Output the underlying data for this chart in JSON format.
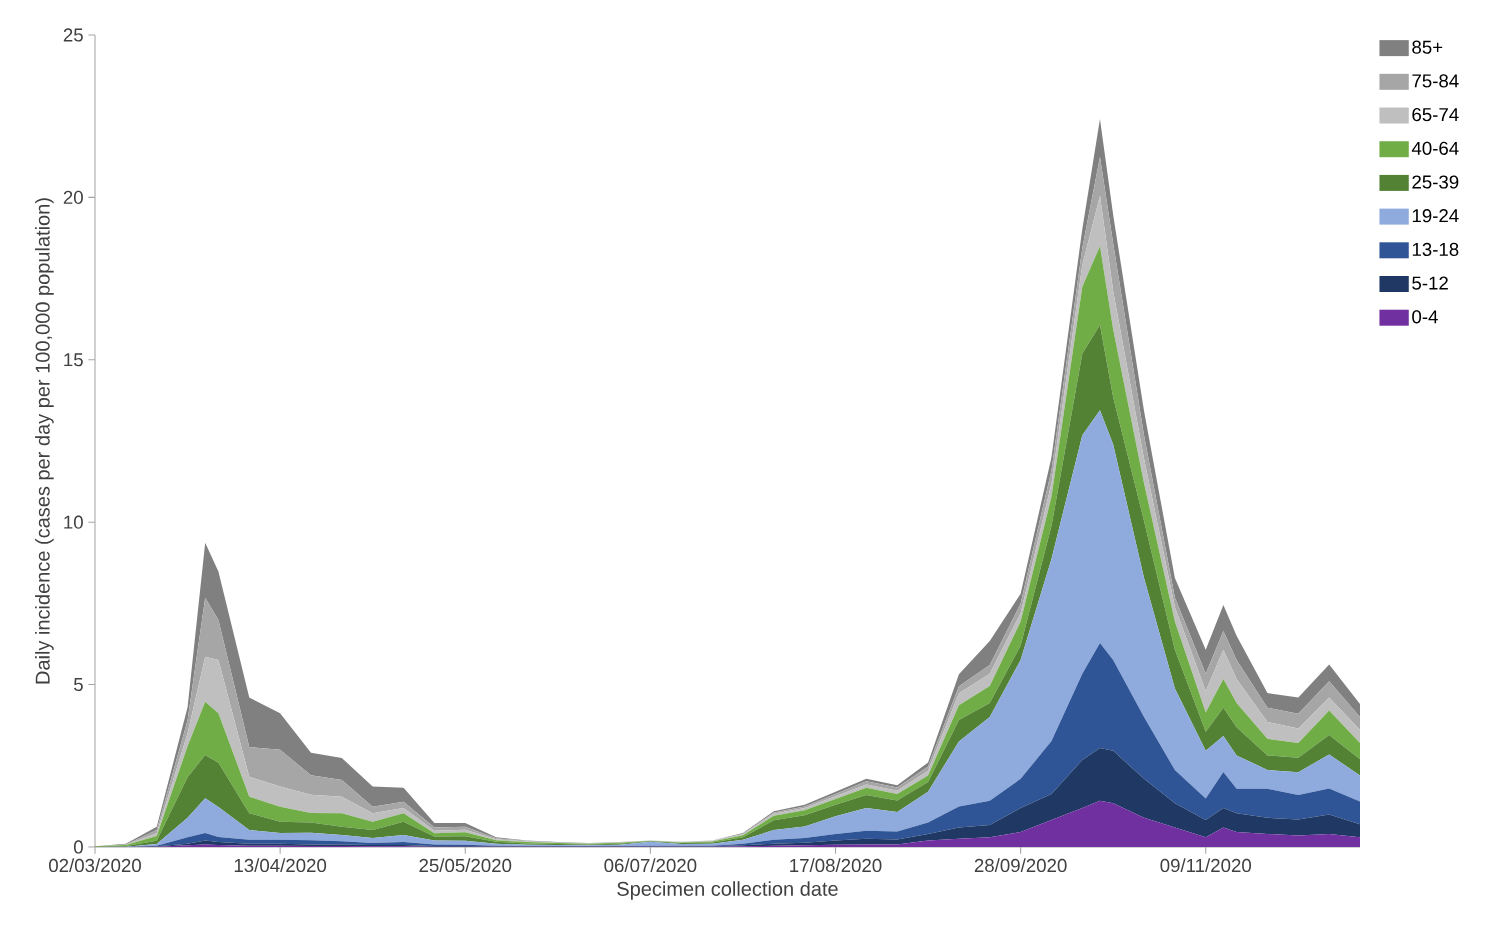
{
  "chart_data": {
    "type": "area",
    "stacked": true,
    "xlabel": "Specimen collection date",
    "ylabel": "Daily incidence (cases per day per 100,000 population)",
    "x": [
      "2020-03-02",
      "2020-03-09",
      "2020-03-16",
      "2020-03-23",
      "2020-03-27",
      "2020-03-30",
      "2020-04-06",
      "2020-04-13",
      "2020-04-20",
      "2020-04-27",
      "2020-05-04",
      "2020-05-11",
      "2020-05-18",
      "2020-05-25",
      "2020-06-01",
      "2020-06-08",
      "2020-06-15",
      "2020-06-22",
      "2020-06-29",
      "2020-07-06",
      "2020-07-13",
      "2020-07-20",
      "2020-07-27",
      "2020-08-03",
      "2020-08-10",
      "2020-08-17",
      "2020-08-24",
      "2020-08-31",
      "2020-09-07",
      "2020-09-14",
      "2020-09-21",
      "2020-09-28",
      "2020-10-05",
      "2020-10-12",
      "2020-10-16",
      "2020-10-19",
      "2020-10-26",
      "2020-11-02",
      "2020-11-09",
      "2020-11-13",
      "2020-11-16",
      "2020-11-23",
      "2020-11-30",
      "2020-12-07",
      "2020-12-14"
    ],
    "series": [
      {
        "name": "0-4",
        "color": "#7030a0",
        "values": [
          0,
          0,
          0.01,
          0.05,
          0.08,
          0.06,
          0.04,
          0.04,
          0.03,
          0.03,
          0.02,
          0.02,
          0.01,
          0.01,
          0.01,
          0.01,
          0.01,
          0.01,
          0.01,
          0.01,
          0.01,
          0.01,
          0.02,
          0.04,
          0.05,
          0.07,
          0.08,
          0.08,
          0.2,
          0.25,
          0.3,
          0.46,
          0.83,
          1.2,
          1.42,
          1.35,
          0.9,
          0.6,
          0.3,
          0.6,
          0.46,
          0.4,
          0.35,
          0.4,
          0.3
        ]
      },
      {
        "name": "5-12",
        "color": "#1f3864",
        "values": [
          0,
          0,
          0.01,
          0.05,
          0.12,
          0.09,
          0.06,
          0.06,
          0.05,
          0.05,
          0.04,
          0.04,
          0.02,
          0.02,
          0.01,
          0.01,
          0.01,
          0.01,
          0.01,
          0.01,
          0.01,
          0.01,
          0.03,
          0.06,
          0.08,
          0.13,
          0.17,
          0.15,
          0.2,
          0.35,
          0.38,
          0.74,
          0.8,
          1.48,
          1.63,
          1.61,
          1.2,
          0.75,
          0.53,
          0.6,
          0.58,
          0.5,
          0.5,
          0.6,
          0.4
        ]
      },
      {
        "name": "13-18",
        "color": "#2f5597",
        "values": [
          0,
          0,
          0.02,
          0.2,
          0.23,
          0.16,
          0.12,
          0.12,
          0.13,
          0.1,
          0.06,
          0.09,
          0.05,
          0.04,
          0.02,
          0.01,
          0.01,
          0.01,
          0.01,
          0.02,
          0.02,
          0.02,
          0.05,
          0.12,
          0.15,
          0.2,
          0.25,
          0.25,
          0.35,
          0.65,
          0.74,
          0.9,
          1.63,
          2.65,
          3.23,
          2.8,
          1.9,
          1.02,
          0.66,
          1.11,
          0.75,
          0.89,
          0.75,
          0.8,
          0.7
        ]
      },
      {
        "name": "19-24",
        "color": "#8faadc",
        "values": [
          0,
          0.01,
          0.05,
          0.6,
          1.07,
          0.92,
          0.3,
          0.21,
          0.23,
          0.19,
          0.16,
          0.22,
          0.12,
          0.12,
          0.06,
          0.04,
          0.03,
          0.02,
          0.04,
          0.12,
          0.05,
          0.06,
          0.12,
          0.3,
          0.35,
          0.55,
          0.7,
          0.6,
          0.95,
          2.0,
          2.58,
          3.66,
          5.61,
          7.35,
          7.17,
          6.63,
          4.28,
          2.51,
          1.47,
          1.11,
          1.03,
          0.58,
          0.7,
          1.05,
          0.8
        ]
      },
      {
        "name": "25-39",
        "color": "#548235",
        "values": [
          0.01,
          0.02,
          0.1,
          1.25,
          1.33,
          1.36,
          0.52,
          0.35,
          0.31,
          0.25,
          0.24,
          0.41,
          0.12,
          0.14,
          0.06,
          0.04,
          0.03,
          0.03,
          0.03,
          0.02,
          0.03,
          0.04,
          0.08,
          0.3,
          0.35,
          0.35,
          0.4,
          0.35,
          0.3,
          0.66,
          0.43,
          0.44,
          1.01,
          2.51,
          2.62,
          1.46,
          1.76,
          1.19,
          0.59,
          0.87,
          0.87,
          0.45,
          0.45,
          0.6,
          0.5
        ]
      },
      {
        "name": "40-64",
        "color": "#70ad47",
        "values": [
          0.01,
          0.03,
          0.15,
          0.95,
          1.64,
          1.53,
          0.51,
          0.46,
          0.3,
          0.42,
          0.26,
          0.26,
          0.1,
          0.12,
          0.05,
          0.04,
          0.03,
          0.02,
          0.03,
          0.01,
          0.02,
          0.03,
          0.06,
          0.14,
          0.15,
          0.18,
          0.22,
          0.2,
          0.2,
          0.45,
          0.53,
          0.74,
          0.9,
          2.06,
          2.43,
          2.08,
          1.16,
          0.87,
          0.59,
          0.88,
          0.74,
          0.51,
          0.45,
          0.75,
          0.5
        ]
      },
      {
        "name": "65-74",
        "color": "#bfbfbf",
        "values": [
          0,
          0.01,
          0.08,
          0.4,
          1.39,
          1.64,
          0.61,
          0.62,
          0.56,
          0.51,
          0.26,
          0.16,
          0.08,
          0.08,
          0.03,
          0.02,
          0.01,
          0.01,
          0.01,
          0.01,
          0.01,
          0.02,
          0.03,
          0.06,
          0.07,
          0.08,
          0.1,
          0.1,
          0.15,
          0.37,
          0.37,
          0.26,
          0.42,
          0.67,
          1.55,
          1.19,
          0.75,
          0.45,
          0.66,
          0.9,
          0.74,
          0.52,
          0.45,
          0.4,
          0.4
        ]
      },
      {
        "name": "75-84",
        "color": "#a6a6a6",
        "values": [
          0,
          0.01,
          0.1,
          0.4,
          1.81,
          1.23,
          0.92,
          1.13,
          0.6,
          0.51,
          0.2,
          0.19,
          0.1,
          0.09,
          0.03,
          0.02,
          0.01,
          0.01,
          0.01,
          0,
          0.01,
          0.01,
          0.02,
          0.04,
          0.05,
          0.07,
          0.1,
          0.1,
          0.13,
          0.22,
          0.27,
          0.3,
          0.4,
          0.52,
          1.19,
          1.46,
          0.73,
          0.29,
          0.53,
          0.58,
          0.59,
          0.44,
          0.45,
          0.5,
          0.4
        ]
      },
      {
        "name": "85+",
        "color": "#808080",
        "values": [
          0,
          0.02,
          0.1,
          0.4,
          1.7,
          1.49,
          1.52,
          1.13,
          0.69,
          0.68,
          0.62,
          0.43,
          0.14,
          0.12,
          0.03,
          0.01,
          0.01,
          0,
          0,
          0,
          0,
          0,
          0.02,
          0.04,
          0.05,
          0.07,
          0.08,
          0.07,
          0.12,
          0.37,
          0.74,
          0.3,
          0.4,
          0.59,
          1.17,
          0.88,
          0.74,
          0.6,
          0.74,
          0.8,
          0.74,
          0.45,
          0.5,
          0.52,
          0.4
        ]
      }
    ],
    "xlim": [
      "2020-03-02",
      "2020-12-14"
    ],
    "xticks": [
      {
        "value": "2020-03-02",
        "label": "02/03/2020"
      },
      {
        "value": "2020-04-13",
        "label": "13/04/2020"
      },
      {
        "value": "2020-05-25",
        "label": "25/05/2020"
      },
      {
        "value": "2020-07-06",
        "label": "06/07/2020"
      },
      {
        "value": "2020-08-17",
        "label": "17/08/2020"
      },
      {
        "value": "2020-09-28",
        "label": "28/09/2020"
      },
      {
        "value": "2020-11-09",
        "label": "09/11/2020"
      }
    ],
    "ylim": [
      0,
      25
    ],
    "yticks": [
      0,
      5,
      10,
      15,
      20,
      25
    ],
    "grid": false,
    "legend": "top right"
  }
}
